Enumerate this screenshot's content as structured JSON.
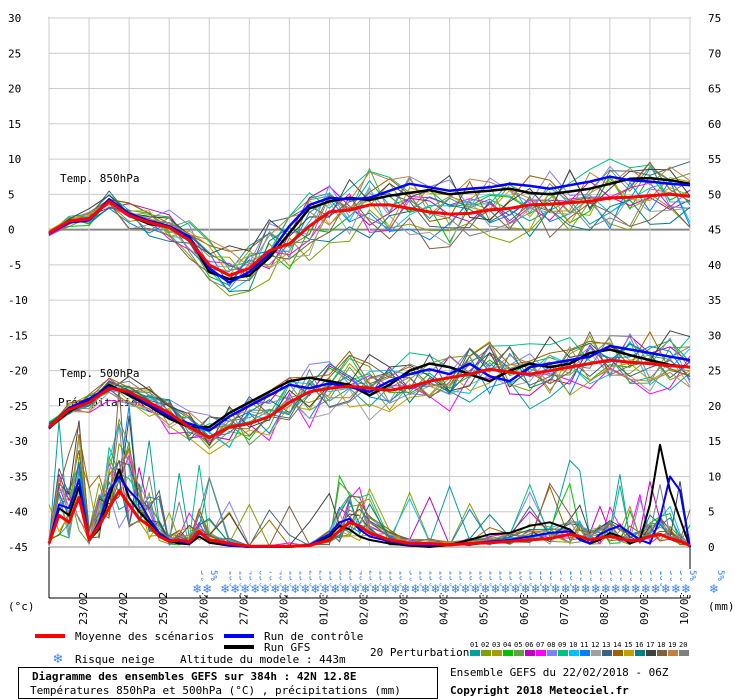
{
  "chart_data": {
    "type": "line",
    "left_axis": {
      "min": -45,
      "max": 30,
      "ticks": [
        30,
        25,
        20,
        15,
        10,
        5,
        0,
        -5,
        -10,
        -15,
        -20,
        -25,
        -30,
        -35,
        -40,
        -45
      ],
      "unit_label": "(°c)"
    },
    "right_axis": {
      "min": 0,
      "max": 75,
      "ticks": [
        75,
        70,
        65,
        60,
        55,
        50,
        45,
        40,
        35,
        30,
        25,
        20,
        15,
        10,
        5,
        0
      ],
      "unit_label": "(mm)"
    },
    "dates": [
      "23/02",
      "24/02",
      "25/02",
      "26/02",
      "27/02",
      "28/02",
      "01/03",
      "02/03",
      "03/03",
      "04/03",
      "05/03",
      "06/03",
      "07/03",
      "08/03",
      "09/03",
      "10/03"
    ],
    "grid": true,
    "panel_labels": [
      "Temp. 850hPa",
      "Temp. 500hPa",
      "Précipitations"
    ],
    "x_days": [
      0,
      0.5,
      1,
      1.5,
      2,
      2.5,
      3,
      3.5,
      4,
      4.5,
      5,
      5.5,
      6,
      6.5,
      7,
      7.5,
      8,
      8.5,
      9,
      9.5,
      10,
      10.5,
      11,
      11.5,
      12,
      12.5,
      13,
      13.5,
      14,
      14.5,
      15,
      15.5,
      16
    ],
    "t850_mean": [
      -0.5,
      1.2,
      1.5,
      4.0,
      2.0,
      1.0,
      0.3,
      -1.5,
      -5.0,
      -6.5,
      -5.5,
      -3.0,
      -2.0,
      0.5,
      2.5,
      2.8,
      3.5,
      3.5,
      3.0,
      2.5,
      2.2,
      2.3,
      2.8,
      3.0,
      3.5,
      3.6,
      3.8,
      4.0,
      4.5,
      4.6,
      4.8,
      5.0,
      4.7
    ],
    "t850_control": [
      -0.6,
      1.0,
      1.3,
      4.3,
      2.3,
      1.2,
      0.5,
      -1.0,
      -5.5,
      -7.5,
      -6.0,
      -3.5,
      0.5,
      3.5,
      4.5,
      4.3,
      4.5,
      5.5,
      6.5,
      6.0,
      5.5,
      5.8,
      6.0,
      6.5,
      6.2,
      5.8,
      6.3,
      6.8,
      7.5,
      7.0,
      6.8,
      6.5,
      6.3
    ],
    "t850_gfs": [
      -0.5,
      1.1,
      1.4,
      4.0,
      2.0,
      0.8,
      0.4,
      -1.0,
      -6.0,
      -7.0,
      -6.5,
      -4.0,
      -0.5,
      3.0,
      4.0,
      4.5,
      4.2,
      4.8,
      5.2,
      5.6,
      5.0,
      5.3,
      5.5,
      5.8,
      5.2,
      5.0,
      5.4,
      5.8,
      6.5,
      7.2,
      7.3,
      7.0,
      6.5
    ],
    "t500_mean": [
      -28.0,
      -25.5,
      -24.5,
      -22.5,
      -23.0,
      -24.5,
      -26.0,
      -28.0,
      -29.5,
      -28.0,
      -27.5,
      -26.5,
      -24.5,
      -23.0,
      -22.5,
      -22.2,
      -22.5,
      -22.8,
      -22.3,
      -21.5,
      -21.0,
      -20.5,
      -19.8,
      -20.2,
      -20.5,
      -20.0,
      -19.5,
      -19.0,
      -18.5,
      -18.8,
      -19.0,
      -19.3,
      -19.5
    ],
    "t500_control": [
      -28.2,
      -25.3,
      -24.0,
      -22.3,
      -23.2,
      -24.8,
      -26.5,
      -27.5,
      -28.5,
      -26.5,
      -25.0,
      -23.5,
      -22.0,
      -22.5,
      -21.8,
      -22.3,
      -23.0,
      -21.5,
      -20.5,
      -19.8,
      -20.5,
      -19.0,
      -20.8,
      -21.5,
      -19.5,
      -19.0,
      -18.5,
      -18.0,
      -16.5,
      -17.0,
      -17.5,
      -18.0,
      -18.5
    ],
    "t500_gfs": [
      -28.0,
      -25.8,
      -24.3,
      -22.0,
      -23.5,
      -25.0,
      -26.8,
      -28.0,
      -28.0,
      -26.0,
      -24.5,
      -23.0,
      -21.5,
      -21.0,
      -21.5,
      -22.0,
      -23.5,
      -22.0,
      -20.0,
      -19.0,
      -19.5,
      -20.5,
      -21.5,
      -20.0,
      -19.0,
      -19.5,
      -19.0,
      -17.5,
      -17.0,
      -17.8,
      -18.5,
      -19.2,
      -19.5
    ],
    "precip_days": [
      0,
      0.25,
      0.5,
      0.75,
      1,
      1.25,
      1.5,
      1.75,
      2,
      2.25,
      2.5,
      2.75,
      3,
      3.25,
      3.5,
      3.75,
      4,
      4.5,
      5,
      5.5,
      6,
      6.5,
      7,
      7.25,
      7.5,
      7.75,
      8,
      8.5,
      9,
      9.5,
      10,
      10.5,
      11,
      11.5,
      12,
      12.5,
      13,
      13.25,
      13.5,
      13.75,
      14,
      14.25,
      14.5,
      14.75,
      15,
      15.25,
      15.5,
      15.75,
      16
    ],
    "precip_mean": [
      0.5,
      4.5,
      3.5,
      7.0,
      1.0,
      3.0,
      5.5,
      8.0,
      6.0,
      4.0,
      3.0,
      1.5,
      0.8,
      1.0,
      0.7,
      2.2,
      1.0,
      0.5,
      0.1,
      0.1,
      0.1,
      0.2,
      1.0,
      2.3,
      3.5,
      3.0,
      2.0,
      1.0,
      0.5,
      0.5,
      0.3,
      0.5,
      0.6,
      0.8,
      1.0,
      1.2,
      1.8,
      1.5,
      1.0,
      1.3,
      1.5,
      1.2,
      0.9,
      1.0,
      1.5,
      1.8,
      1.2,
      0.8,
      0.2
    ],
    "precip_control": [
      0.5,
      6.0,
      5.5,
      9.5,
      1.0,
      3.5,
      8.0,
      10.0,
      8.0,
      6.5,
      4.0,
      2.0,
      1.0,
      0.8,
      0.5,
      2.0,
      1.0,
      0.2,
      0.0,
      0.0,
      0.1,
      0.3,
      1.8,
      3.5,
      4.0,
      2.5,
      1.5,
      0.8,
      0.3,
      0.2,
      0.4,
      0.5,
      0.8,
      1.0,
      1.5,
      2.0,
      2.2,
      1.0,
      0.5,
      1.8,
      2.5,
      3.0,
      2.0,
      1.0,
      0.5,
      4.0,
      10.0,
      8.0,
      0.0
    ],
    "precip_gfs": [
      0.5,
      5.5,
      4.5,
      8.5,
      1.0,
      2.5,
      7.0,
      11.0,
      7.0,
      5.0,
      3.5,
      1.8,
      0.8,
      0.5,
      0.4,
      1.5,
      0.6,
      0.2,
      0.0,
      0.0,
      0.0,
      0.2,
      1.5,
      3.0,
      2.5,
      1.5,
      1.0,
      0.5,
      0.2,
      0.0,
      0.3,
      1.0,
      1.8,
      2.0,
      3.0,
      3.5,
      2.5,
      1.2,
      0.5,
      1.0,
      2.0,
      1.5,
      0.5,
      1.0,
      6.0,
      14.5,
      8.0,
      4.0,
      0.0
    ],
    "snow_risk": [
      {
        "day": 3.7,
        "pct": "5%"
      },
      {
        "day": 3.95,
        "pct": "5%"
      },
      {
        "day": 4.4,
        "pct": "10%"
      },
      {
        "day": 4.65,
        "pct": "15%"
      },
      {
        "day": 4.9,
        "pct": "45%"
      },
      {
        "day": 5.15,
        "pct": "65%"
      },
      {
        "day": 5.4,
        "pct": "70%"
      },
      {
        "day": 5.65,
        "pct": "40%"
      },
      {
        "day": 5.9,
        "pct": "15%"
      },
      {
        "day": 6.15,
        "pct": "15%"
      },
      {
        "day": 6.4,
        "pct": "25%"
      },
      {
        "day": 6.65,
        "pct": "25%"
      },
      {
        "day": 6.9,
        "pct": "15%"
      },
      {
        "day": 7.15,
        "pct": "35%"
      },
      {
        "day": 7.4,
        "pct": "25%"
      },
      {
        "day": 7.65,
        "pct": "40%"
      },
      {
        "day": 7.9,
        "pct": "25%"
      },
      {
        "day": 8.15,
        "pct": "15%"
      },
      {
        "day": 8.4,
        "pct": "15%"
      },
      {
        "day": 8.65,
        "pct": "10%"
      },
      {
        "day": 8.9,
        "pct": "5%"
      },
      {
        "day": 9.15,
        "pct": "15%"
      },
      {
        "day": 9.4,
        "pct": "15%"
      },
      {
        "day": 9.65,
        "pct": "10%"
      },
      {
        "day": 9.9,
        "pct": "15%"
      },
      {
        "day": 10.15,
        "pct": "15%"
      },
      {
        "day": 10.4,
        "pct": "10%"
      },
      {
        "day": 10.65,
        "pct": "10%"
      },
      {
        "day": 10.9,
        "pct": "15%"
      },
      {
        "day": 11.15,
        "pct": "15%"
      },
      {
        "day": 11.4,
        "pct": "15%"
      },
      {
        "day": 11.65,
        "pct": "10%"
      },
      {
        "day": 11.9,
        "pct": "15%"
      },
      {
        "day": 12.15,
        "pct": "15%"
      },
      {
        "day": 12.4,
        "pct": "10%"
      },
      {
        "day": 12.65,
        "pct": "5%"
      },
      {
        "day": 12.9,
        "pct": "10%"
      },
      {
        "day": 13.15,
        "pct": "5%"
      },
      {
        "day": 13.4,
        "pct": "5%"
      },
      {
        "day": 13.65,
        "pct": "5%"
      },
      {
        "day": 13.9,
        "pct": "5%"
      },
      {
        "day": 14.15,
        "pct": "5%"
      },
      {
        "day": 14.4,
        "pct": "5%"
      },
      {
        "day": 14.65,
        "pct": "5%"
      },
      {
        "day": 14.9,
        "pct": "5%"
      },
      {
        "day": 15.15,
        "pct": "10%"
      },
      {
        "day": 15.4,
        "pct": "5%"
      },
      {
        "day": 15.65,
        "pct": "5%"
      },
      {
        "day": 15.9,
        "pct": "5%"
      },
      {
        "day": 16.6,
        "pct": "5%"
      }
    ],
    "perturbation_count": 20
  },
  "legend": {
    "mean": "Moyenne des scénarios",
    "control": "Run de contrôle",
    "gfs": "Run GFS",
    "snow": "Risque neige",
    "altitude": "Altitude du modele : 443m",
    "perturbations": "20 Perturbations",
    "perturbation_ids": [
      "01",
      "02",
      "03",
      "04",
      "05",
      "06",
      "07",
      "08",
      "09",
      "10",
      "11",
      "12",
      "13",
      "14",
      "15",
      "16",
      "17",
      "18",
      "19",
      "20"
    ],
    "perturbation_colors": [
      "#00a0a0",
      "#7fa000",
      "#a0a000",
      "#00c000",
      "#60a040",
      "#c000c0",
      "#ff00ff",
      "#8080ff",
      "#00c080",
      "#00c0ff",
      "#0080ff",
      "#a0a0a0",
      "#406080",
      "#a06000",
      "#c0a000",
      "#008080",
      "#404040",
      "#806040",
      "#c08040",
      "#808080"
    ]
  },
  "colors": {
    "mean": "#ff0000",
    "control": "#0000ff",
    "gfs": "#000000"
  },
  "footer": {
    "title": "Diagramme des ensembles GEFS sur 384h : 42N 12.8E",
    "subtitle": "Températures 850hPa et 500hPa (°C) , précipitations (mm)",
    "run": "Ensemble GEFS du 22/02/2018 - 06Z",
    "copyright": "Copyright 2018 Meteociel.fr"
  }
}
